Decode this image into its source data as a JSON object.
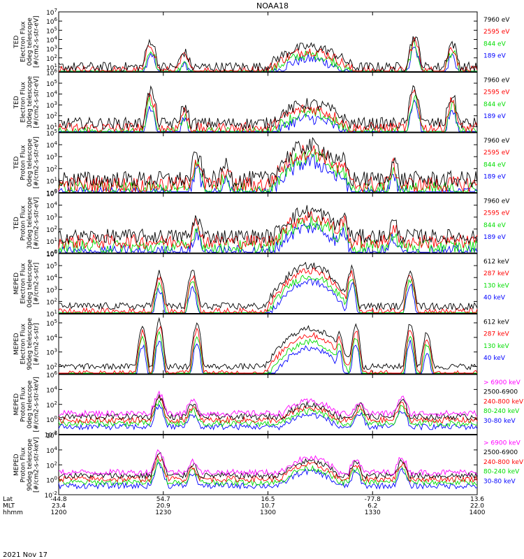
{
  "title": "NOAA18",
  "date": "2021 Nov 17",
  "colors": {
    "blue": "#0000ff",
    "red": "#ff0000",
    "green": "#00dd00",
    "black": "#000000",
    "magenta": "#ff00ff"
  },
  "chart_data": [
    {
      "type": "line",
      "ylabel_lines": [
        "TED",
        "Electron Flux",
        "0deg telescope",
        "[#/cm2-s-str-eV]"
      ],
      "ytick_labels": [
        "10^1",
        "10^2",
        "10^3",
        "10^4",
        "10^5",
        "10^6",
        "10^7"
      ],
      "ylim_log10": [
        0.5,
        7
      ],
      "series": [
        {
          "name": "7960 eV",
          "color": "black"
        },
        {
          "name": "2595 eV",
          "color": "red"
        },
        {
          "name": "844 eV",
          "color": "green"
        },
        {
          "name": "189 eV",
          "color": "blue"
        }
      ],
      "profile": {
        "base": 1.0,
        "storms": [
          [
            0.22,
            3.9
          ],
          [
            0.3,
            2.6
          ],
          [
            0.57,
            2.2
          ],
          [
            0.85,
            4.3
          ],
          [
            0.94,
            3.6
          ]
        ],
        "dome": 3.2,
        "noise": 0.55
      }
    },
    {
      "type": "line",
      "ylabel_lines": [
        "TED",
        "Electron Flux",
        "30deg telescope",
        "[#/cm2-s-str-eV]"
      ],
      "ytick_labels": [
        "10^1",
        "10^2",
        "10^3",
        "10^4",
        "10^5",
        "10^6"
      ],
      "ylim_log10": [
        0.5,
        6
      ],
      "series": [
        {
          "name": "7960 eV",
          "color": "black"
        },
        {
          "name": "2595 eV",
          "color": "red"
        },
        {
          "name": "844 eV",
          "color": "green"
        },
        {
          "name": "189 eV",
          "color": "blue"
        }
      ],
      "profile": {
        "base": 1.3,
        "storms": [
          [
            0.22,
            4.3
          ],
          [
            0.3,
            2.8
          ],
          [
            0.57,
            2.4
          ],
          [
            0.85,
            4.6
          ],
          [
            0.94,
            3.8
          ]
        ],
        "dome": 3.1,
        "noise": 0.55
      }
    },
    {
      "type": "line",
      "ylabel_lines": [
        "TED",
        "Proton Flux",
        "0deg telescope",
        "[#/cm2-s-str-eV]"
      ],
      "ytick_labels": [
        "10^0",
        "10^1",
        "10^2",
        "10^3",
        "10^4",
        "10^5"
      ],
      "ylim_log10": [
        0,
        5
      ],
      "series": [
        {
          "name": "7960 eV",
          "color": "black"
        },
        {
          "name": "2595 eV",
          "color": "red"
        },
        {
          "name": "844 eV",
          "color": "green"
        },
        {
          "name": "189 eV",
          "color": "blue"
        }
      ],
      "profile": {
        "base": 1.1,
        "storms": [
          [
            0.33,
            3.2
          ],
          [
            0.4,
            2.4
          ],
          [
            0.68,
            2.7
          ],
          [
            0.8,
            2.6
          ]
        ],
        "dome": 3.9,
        "noise": 0.7
      }
    },
    {
      "type": "line",
      "ylabel_lines": [
        "TED",
        "Proton Flux",
        "30deg telescope",
        "[#/cm2-s-str-eV]"
      ],
      "ytick_labels": [
        "10^0",
        "10^1",
        "10^2",
        "10^3",
        "10^4",
        "10^5"
      ],
      "ylim_log10": [
        0,
        5
      ],
      "series": [
        {
          "name": "7960 eV",
          "color": "black"
        },
        {
          "name": "2595 eV",
          "color": "red"
        },
        {
          "name": "844 eV",
          "color": "green"
        },
        {
          "name": "189 eV",
          "color": "blue"
        }
      ],
      "profile": {
        "base": 1.4,
        "storms": [
          [
            0.33,
            3.0
          ],
          [
            0.68,
            3.2
          ],
          [
            0.8,
            2.6
          ]
        ],
        "dome": 3.5,
        "noise": 0.6
      }
    },
    {
      "type": "line",
      "ylabel_lines": [
        "MEPED",
        "Electron Flux",
        "0deg telescope",
        "[#/cm2-s-str]"
      ],
      "ytick_labels": [
        "10^1",
        "10^2",
        "10^3",
        "10^4",
        "10^5",
        "10^6"
      ],
      "ylim_log10": [
        1,
        6
      ],
      "series": [
        {
          "name": "612 keV",
          "color": "black"
        },
        {
          "name": "287 keV",
          "color": "red"
        },
        {
          "name": "130 keV",
          "color": "green"
        },
        {
          "name": "40 keV",
          "color": "blue"
        }
      ],
      "profile": {
        "base": 1.6,
        "storms": [
          [
            0.24,
            4.4
          ],
          [
            0.32,
            4.6
          ],
          [
            0.7,
            4.8
          ],
          [
            0.84,
            4.7
          ]
        ],
        "dome": 5.0,
        "noise": 0.3
      }
    },
    {
      "type": "line",
      "ylabel_lines": [
        "MEPED",
        "Electron Flux",
        "90deg telescope",
        "[#/cm2-s-str]"
      ],
      "ytick_labels": [
        "10^2",
        "10^3",
        "10^4",
        "10^5"
      ],
      "ylim_log10": [
        1.5,
        5.6
      ],
      "series": [
        {
          "name": "612 keV",
          "color": "black"
        },
        {
          "name": "287 keV",
          "color": "red"
        },
        {
          "name": "130 keV",
          "color": "green"
        },
        {
          "name": "40 keV",
          "color": "blue"
        }
      ],
      "profile": {
        "base": 2.0,
        "storms": [
          [
            0.2,
            4.8
          ],
          [
            0.24,
            5.2
          ],
          [
            0.33,
            5.0
          ],
          [
            0.67,
            4.4
          ],
          [
            0.71,
            4.9
          ],
          [
            0.84,
            5.0
          ],
          [
            0.88,
            4.4
          ]
        ],
        "dome": 4.6,
        "noise": 0.2
      }
    },
    {
      "type": "line",
      "ylabel_lines": [
        "MEPED",
        "Proton Flux",
        "0deg telescope",
        "[#/cm2-s-str-keV]"
      ],
      "ytick_labels": [
        "10^-2",
        "10^0",
        "10^2",
        "10^4",
        "10^6"
      ],
      "ylim_log10": [
        -2,
        6
      ],
      "series": [
        {
          "name": "> 6900 keV",
          "color": "magenta"
        },
        {
          "name": "2500-6900",
          "color": "black"
        },
        {
          "name": "240-800 keV",
          "color": "red"
        },
        {
          "name": "80-240 keV",
          "color": "green"
        },
        {
          "name": "30-80 keV",
          "color": "blue"
        }
      ],
      "profile": {
        "base": 0.8,
        "storms": [
          [
            0.24,
            3.5
          ],
          [
            0.32,
            2.5
          ],
          [
            0.72,
            2.4
          ],
          [
            0.82,
            2.9
          ]
        ],
        "dome": 2.4,
        "noise": 0.4
      }
    },
    {
      "type": "line",
      "ylabel_lines": [
        "MEPED",
        "Proton Flux",
        "90deg telescope",
        "[#/cm2-s-str-keV]"
      ],
      "ytick_labels": [
        "10^-2",
        "10^0",
        "10^2",
        "10^4",
        "10^6"
      ],
      "ylim_log10": [
        -2,
        6
      ],
      "series": [
        {
          "name": "> 6900 keV",
          "color": "magenta"
        },
        {
          "name": "2500-6900",
          "color": "black"
        },
        {
          "name": "240-800 keV",
          "color": "red"
        },
        {
          "name": "80-240 keV",
          "color": "green"
        },
        {
          "name": "30-80 keV",
          "color": "blue"
        }
      ],
      "profile": {
        "base": 1.0,
        "storms": [
          [
            0.24,
            3.9
          ],
          [
            0.32,
            2.6
          ],
          [
            0.71,
            2.8
          ],
          [
            0.82,
            3.0
          ]
        ],
        "dome": 2.9,
        "noise": 0.4
      }
    }
  ],
  "x_axis": {
    "row_labels": [
      "Lat",
      "MLT",
      "hhmm"
    ],
    "ticks": [
      {
        "values": [
          "-44.8",
          "23.4",
          "1200"
        ]
      },
      {
        "values": [
          "54.7",
          "20.9",
          "1230"
        ]
      },
      {
        "values": [
          "16.5",
          "10.7",
          "1300"
        ]
      },
      {
        "values": [
          "-77.8",
          "6.2",
          "1330"
        ]
      },
      {
        "values": [
          "13.6",
          "22.0",
          "1400"
        ]
      }
    ]
  }
}
